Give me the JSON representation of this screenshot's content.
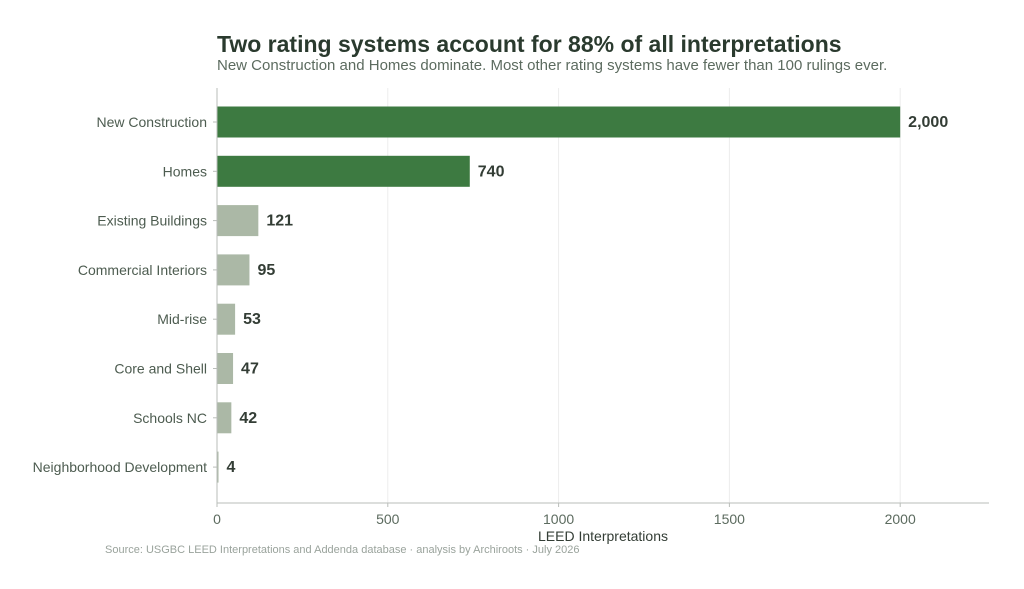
{
  "chart_data": {
    "type": "bar",
    "orientation": "horizontal",
    "title": "Two rating systems account for 88% of all interpretations",
    "subtitle": "New Construction and Homes dominate. Most other rating systems have fewer than 100 rulings ever.",
    "xlabel": "LEED Interpretations",
    "ylabel": "",
    "xlim": [
      0,
      2260
    ],
    "xticks": [
      0,
      500,
      1000,
      1500,
      2000
    ],
    "grid": "vertical",
    "legend": "none",
    "categories": [
      "New Construction",
      "Homes",
      "Existing Buildings",
      "Commercial Interiors",
      "Mid-rise",
      "Core and Shell",
      "Schools NC",
      "Neighborhood Development"
    ],
    "values": [
      2000,
      740,
      121,
      95,
      53,
      47,
      42,
      4
    ],
    "value_labels": [
      "2,000",
      "740",
      "121",
      "95",
      "53",
      "47",
      "42",
      "4"
    ],
    "highlighted": [
      true,
      true,
      false,
      false,
      false,
      false,
      false,
      false
    ],
    "colors": {
      "highlight": "#3d7a41",
      "other": "#abb8a6"
    },
    "source": "Source: USGBC LEED Interpretations and Addenda database · analysis by Archiroots · July 2026"
  }
}
